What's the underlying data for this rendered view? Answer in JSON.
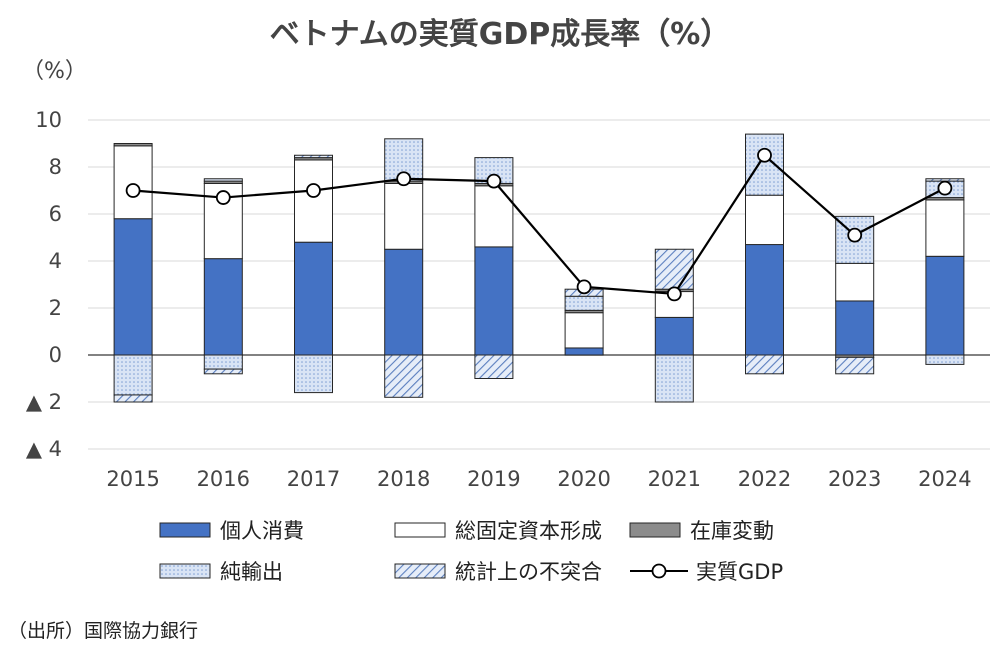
{
  "source": "（出所）国際協力銀行",
  "colors": {
    "personal": "#4472C4",
    "investment": "#FFFFFF",
    "inventory": "#8C8C8C",
    "net_exports": "#D9E4F5",
    "discrepancy": "#B4C7E7",
    "gdp_line": "#000000",
    "gridline": "#D9D9D9"
  },
  "chart_data": {
    "type": "bar",
    "stacked": true,
    "title": "ベトナムの実質GDP成長率（%）",
    "unit_label": "（%）",
    "ylim": [
      -4,
      10
    ],
    "yticks": [
      {
        "value": 10,
        "label": "10"
      },
      {
        "value": 8,
        "label": "8"
      },
      {
        "value": 6,
        "label": "6"
      },
      {
        "value": 4,
        "label": "4"
      },
      {
        "value": 2,
        "label": "2"
      },
      {
        "value": 0,
        "label": "0"
      },
      {
        "value": -2,
        "label": "▲ 2"
      },
      {
        "value": -4,
        "label": "▲ 4"
      }
    ],
    "grid": true,
    "legend_position": "bottom",
    "categories": [
      "2015",
      "2016",
      "2017",
      "2018",
      "2019",
      "2020",
      "2021",
      "2022",
      "2023",
      "2024"
    ],
    "series": [
      {
        "name": "個人消費",
        "key": "personal",
        "values": [
          5.8,
          4.1,
          4.8,
          4.5,
          4.6,
          0.3,
          1.6,
          4.7,
          2.3,
          4.2
        ]
      },
      {
        "name": "総固定資本形成",
        "key": "investment",
        "values": [
          3.1,
          3.2,
          3.5,
          2.8,
          2.6,
          1.5,
          1.1,
          2.1,
          1.6,
          2.4
        ]
      },
      {
        "name": "在庫変動",
        "key": "inventory",
        "values": [
          0.1,
          0.1,
          0.1,
          0.1,
          0.1,
          0.1,
          0.1,
          0.0,
          -0.1,
          0.1
        ]
      },
      {
        "name": "純輸出",
        "key": "net_exports",
        "values": [
          -1.7,
          -0.6,
          -1.6,
          0.0,
          0.0,
          0.6,
          -2.0,
          0.0,
          0.0,
          -0.4
        ]
      },
      {
        "name": "統計上の不突合",
        "key": "discrepancy",
        "values": [
          -0.3,
          -0.2,
          0.1,
          -1.8,
          -1.0,
          0.3,
          1.7,
          -0.8,
          -0.7,
          0.1
        ]
      }
    ],
    "extra_positive": {
      "net_exports": [
        0.0,
        0.1,
        0.0,
        1.8,
        1.1,
        0.0,
        0.0,
        2.6,
        2.0,
        0.7
      ]
    },
    "line_series": {
      "name": "実質GDP",
      "key": "gdp_line",
      "values": [
        7.0,
        6.7,
        7.0,
        7.5,
        7.4,
        2.9,
        2.6,
        8.5,
        5.1,
        7.1
      ]
    }
  }
}
